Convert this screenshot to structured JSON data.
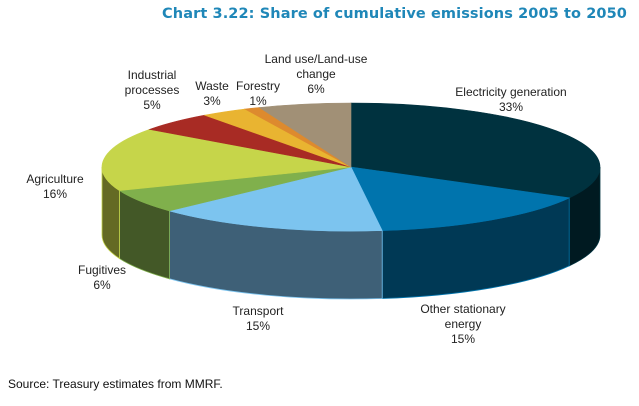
{
  "chart_data": {
    "type": "pie",
    "title": "Chart 3.22: Share of cumulative emissions 2005 to 2050",
    "style": "3d",
    "start": "12 o'clock, clockwise",
    "slices": [
      {
        "name": "Electricity generation",
        "lines": [
          "Electricity generation",
          "33%"
        ],
        "value": 33,
        "top_color": "#00323f",
        "side_color": "#001a21"
      },
      {
        "name": "Other stationary energy",
        "lines": [
          "Other stationary",
          "energy",
          "15%"
        ],
        "value": 15,
        "top_color": "#0074ad",
        "side_color": "#003955"
      },
      {
        "name": "Transport",
        "lines": [
          "Transport",
          "15%"
        ],
        "value": 15,
        "top_color": "#7cc4ef",
        "side_color": "#3e6077"
      },
      {
        "name": "Fugitives",
        "lines": [
          "Fugitives",
          "6%"
        ],
        "value": 6,
        "top_color": "#80b04c",
        "side_color": "#435827"
      },
      {
        "name": "Agriculture",
        "lines": [
          "Agriculture",
          "16%"
        ],
        "value": 16,
        "top_color": "#c6d54a",
        "side_color": "#646a24"
      },
      {
        "name": "Industrial processes",
        "lines": [
          "Industrial",
          "processes",
          "5%"
        ],
        "value": 5,
        "top_color": "#a82b24",
        "side_color": "#551612"
      },
      {
        "name": "Waste",
        "lines": [
          "Waste",
          "3%"
        ],
        "value": 3,
        "top_color": "#e9b431",
        "side_color": "#755a18"
      },
      {
        "name": "Forestry",
        "lines": [
          "Forestry",
          "1%"
        ],
        "value": 1,
        "top_color": "#dd8a2e",
        "side_color": "#6f4517"
      },
      {
        "name": "Land use/Land-use change",
        "lines": [
          "Land use/Land-use",
          "change",
          "6%"
        ],
        "value": 6,
        "top_color": "#a19076",
        "side_color": "#51483b"
      }
    ]
  },
  "source": "Source: Treasury estimates from MMRF."
}
